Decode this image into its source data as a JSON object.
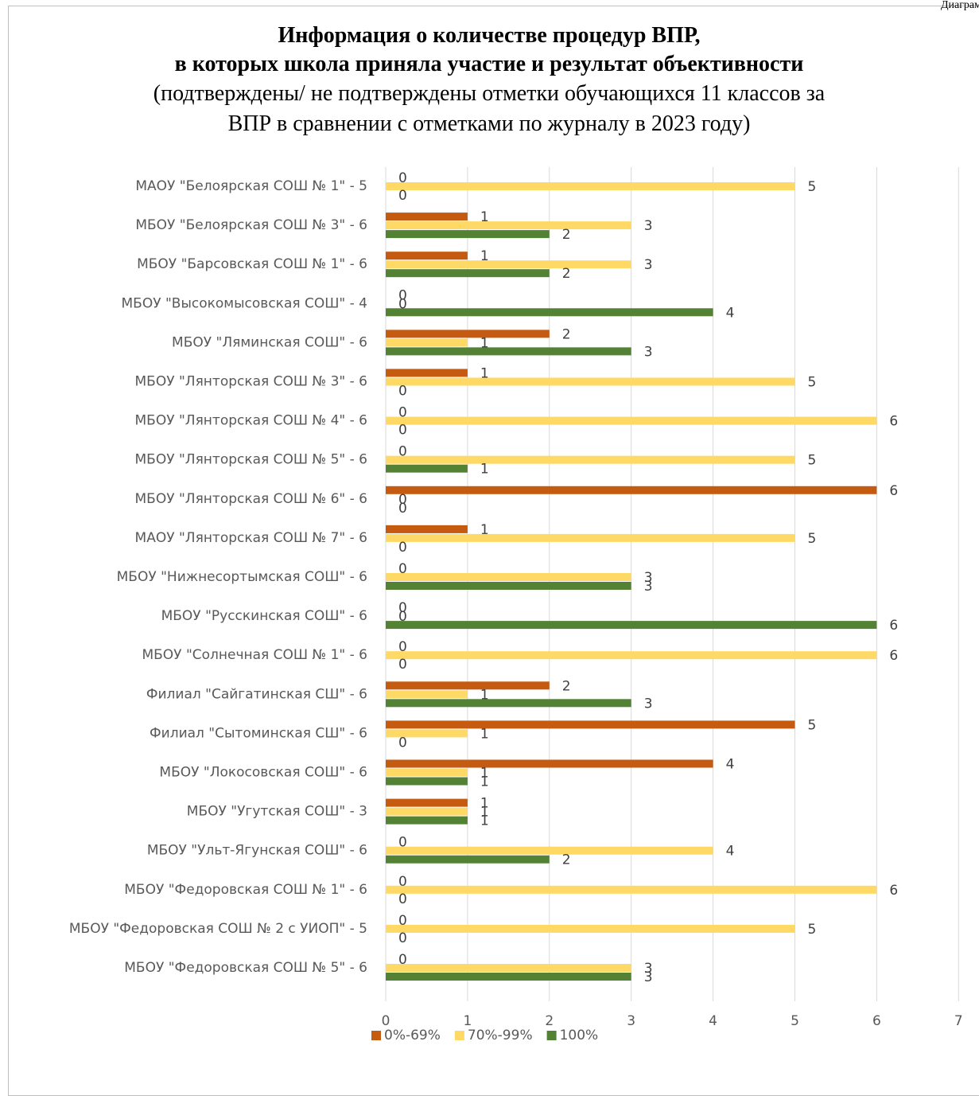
{
  "corner_text": "Диаграмма",
  "title": {
    "line1": "Информация о количестве процедур ВПР,",
    "line2": "в которых школа приняла участие и результат объективности",
    "subtitle1": "(подтверждены/ не подтверждены отметки обучающихся 11 классов за",
    "subtitle2": "ВПР в сравнении с отметками по журналу в 2023 году)"
  },
  "chart_data": {
    "type": "bar",
    "orientation": "horizontal",
    "categories": [
      "МАОУ \"Белоярская СОШ № 1\" - 5",
      "МБОУ \"Белоярская СОШ № 3\" - 6",
      "МБОУ \"Барсовская СОШ № 1\" - 6",
      "МБОУ \"Высокомысовская СОШ\" - 4",
      "МБОУ \"Ляминская СОШ\" - 6",
      "МБОУ \"Лянторская СОШ № 3\" - 6",
      "МБОУ \"Лянторская СОШ № 4\" - 6",
      "МБОУ \"Лянторская СОШ № 5\" - 6",
      "МБОУ \"Лянторская СОШ № 6\" - 6",
      "МАОУ \"Лянторская СОШ № 7\" - 6",
      "МБОУ \"Нижнесортымская СОШ\" - 6",
      "МБОУ \"Русскинская СОШ\" - 6",
      "МБОУ \"Солнечная СОШ № 1\" - 6",
      "Филиал \"Сайгатинская СШ\" - 6",
      "Филиал \"Сытоминская СШ\" - 6",
      "МБОУ \"Локосовская СОШ\" - 6",
      "МБОУ \"Угутская СОШ\" - 3",
      "МБОУ \"Ульт-Ягунская СОШ\" - 6",
      "МБОУ \"Федоровская СОШ № 1\" - 6",
      "МБОУ \"Федоровская СОШ № 2 с УИОП\" - 5",
      "МБОУ \"Федоровская СОШ № 5\" - 6"
    ],
    "series": [
      {
        "name": "0%-69%",
        "color": "#c55a11",
        "values": [
          0,
          1,
          1,
          0,
          2,
          1,
          0,
          0,
          6,
          1,
          0,
          0,
          0,
          2,
          5,
          4,
          1,
          0,
          0,
          0,
          0
        ]
      },
      {
        "name": "70%-99%",
        "color": "#ffd966",
        "values": [
          5,
          3,
          3,
          0,
          1,
          5,
          6,
          5,
          0,
          5,
          3,
          0,
          6,
          1,
          1,
          1,
          1,
          4,
          6,
          5,
          3
        ]
      },
      {
        "name": "100%",
        "color": "#548235",
        "values": [
          0,
          2,
          2,
          4,
          3,
          0,
          0,
          1,
          0,
          0,
          3,
          6,
          0,
          3,
          0,
          1,
          1,
          2,
          0,
          0,
          3
        ]
      }
    ],
    "xlim": [
      0,
      7
    ],
    "xticks": [
      "0",
      "1",
      "2",
      "3",
      "4",
      "5",
      "6",
      "7"
    ],
    "grid": true,
    "legend_position": "bottom"
  }
}
